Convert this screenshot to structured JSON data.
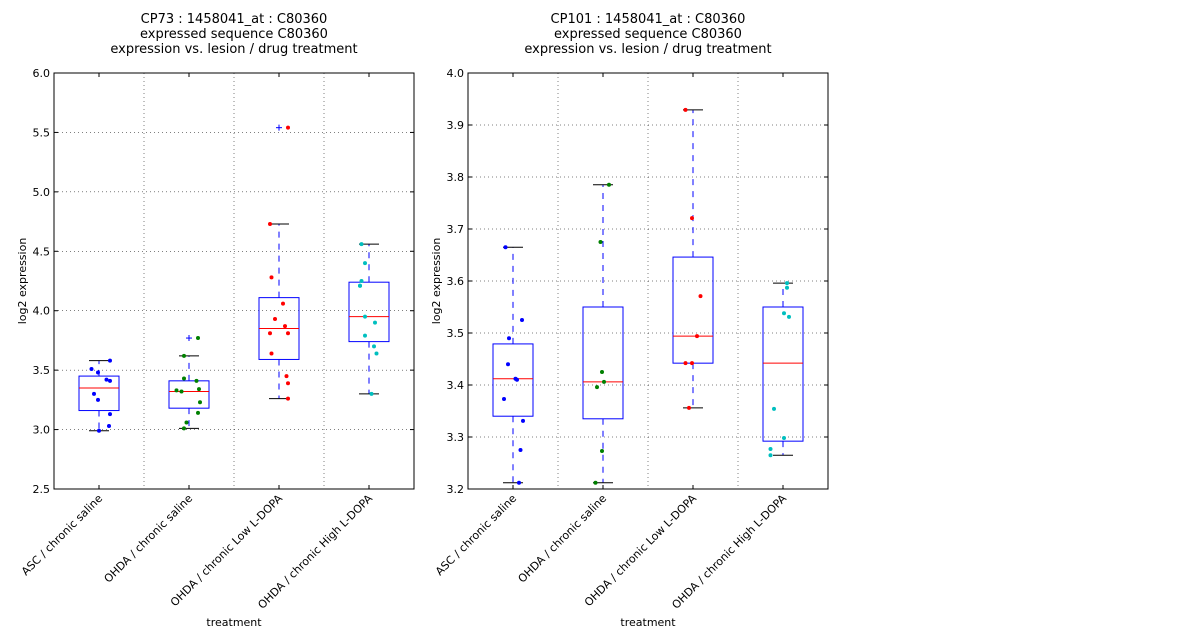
{
  "chart_data": [
    {
      "type": "box",
      "title": [
        "CP73 : 1458041_at : C80360",
        "expressed sequence C80360",
        "expression vs. lesion / drug treatment"
      ],
      "xlabel": "treatment",
      "ylabel": "log2 expression",
      "ylim": [
        2.5,
        6.0
      ],
      "yticks": [
        "2.5",
        "3.0",
        "3.5",
        "4.0",
        "4.5",
        "5.0",
        "5.5",
        "6.0"
      ],
      "grid": true,
      "categories": [
        "ASC / chronic saline",
        "OHDA / chronic saline",
        "OHDA / chronic Low L-DOPA",
        "OHDA / chronic High L-DOPA"
      ],
      "point_colors": [
        "#0000ff",
        "#008000",
        "#ff0000",
        "#00bfbf"
      ],
      "boxes": [
        {
          "whisker_low": 2.99,
          "q1": 3.16,
          "median": 3.35,
          "q3": 3.45,
          "whisker_high": 3.58,
          "fliers": []
        },
        {
          "whisker_low": 3.01,
          "q1": 3.18,
          "median": 3.32,
          "q3": 3.41,
          "whisker_high": 3.62,
          "fliers": [
            3.77
          ]
        },
        {
          "whisker_low": 3.26,
          "q1": 3.59,
          "median": 3.85,
          "q3": 4.11,
          "whisker_high": 4.73,
          "fliers": [
            5.54
          ]
        },
        {
          "whisker_low": 3.3,
          "q1": 3.74,
          "median": 3.95,
          "q3": 4.24,
          "whisker_high": 4.56,
          "fliers": []
        }
      ],
      "points": [
        [
          3.58,
          3.51,
          3.48,
          3.42,
          3.41,
          3.3,
          3.25,
          3.13,
          3.03,
          2.99
        ],
        [
          3.77,
          3.62,
          3.43,
          3.41,
          3.33,
          3.32,
          3.34,
          3.23,
          3.14,
          3.06,
          3.01
        ],
        [
          5.54,
          4.73,
          4.28,
          4.06,
          3.93,
          3.87,
          3.81,
          3.81,
          3.64,
          3.45,
          3.39,
          3.26
        ],
        [
          4.56,
          4.4,
          4.25,
          4.21,
          4.21,
          3.95,
          3.9,
          3.79,
          3.7,
          3.64,
          3.3
        ]
      ],
      "jitter": [
        [
          0.22,
          -0.15,
          -0.02,
          0.15,
          0.22,
          -0.1,
          -0.02,
          0.22,
          0.2,
          0.0
        ],
        [
          0.18,
          -0.1,
          -0.1,
          0.15,
          -0.25,
          -0.15,
          0.2,
          0.22,
          0.18,
          -0.05,
          -0.1
        ],
        [
          0.18,
          -0.18,
          -0.15,
          0.08,
          -0.08,
          0.12,
          -0.18,
          0.18,
          -0.15,
          0.15,
          0.18,
          0.18
        ],
        [
          -0.15,
          -0.08,
          -0.15,
          -0.18,
          -0.18,
          -0.08,
          0.12,
          -0.08,
          0.1,
          0.15,
          0.05
        ]
      ]
    },
    {
      "type": "box",
      "title": [
        "CP101 : 1458041_at : C80360",
        "expressed sequence C80360",
        "expression vs. lesion / drug treatment"
      ],
      "xlabel": "treatment",
      "ylabel": "log2 expression",
      "ylim": [
        3.2,
        4.0
      ],
      "yticks": [
        "3.2",
        "3.3",
        "3.4",
        "3.5",
        "3.6",
        "3.7",
        "3.8",
        "3.9",
        "4.0"
      ],
      "grid": true,
      "categories": [
        "ASC / chronic saline",
        "OHDA / chronic saline",
        "OHDA / chronic Low L-DOPA",
        "OHDA / chronic High L-DOPA"
      ],
      "point_colors": [
        "#0000ff",
        "#008000",
        "#ff0000",
        "#00bfbf"
      ],
      "boxes": [
        {
          "whisker_low": 3.212,
          "q1": 3.34,
          "median": 3.412,
          "q3": 3.479,
          "whisker_high": 3.665,
          "fliers": []
        },
        {
          "whisker_low": 3.212,
          "q1": 3.335,
          "median": 3.406,
          "q3": 3.55,
          "whisker_high": 3.785,
          "fliers": []
        },
        {
          "whisker_low": 3.356,
          "q1": 3.442,
          "median": 3.494,
          "q3": 3.646,
          "whisker_high": 3.929,
          "fliers": []
        },
        {
          "whisker_low": 3.265,
          "q1": 3.292,
          "median": 3.442,
          "q3": 3.55,
          "whisker_high": 3.596,
          "fliers": []
        }
      ],
      "points": [
        [
          3.665,
          3.525,
          3.49,
          3.44,
          3.412,
          3.41,
          3.373,
          3.331,
          3.275,
          3.212
        ],
        [
          3.785,
          3.675,
          3.425,
          3.406,
          3.396,
          3.273,
          3.212
        ],
        [
          3.929,
          3.721,
          3.571,
          3.494,
          3.442,
          3.442,
          3.356
        ],
        [
          3.596,
          3.587,
          3.538,
          3.531,
          3.354,
          3.298,
          3.277,
          3.265
        ]
      ],
      "jitter": [
        [
          -0.15,
          0.18,
          -0.08,
          -0.1,
          0.05,
          0.08,
          -0.18,
          0.2,
          0.15,
          0.12
        ],
        [
          0.12,
          -0.05,
          -0.02,
          0.02,
          -0.12,
          -0.02,
          -0.15
        ],
        [
          -0.15,
          -0.02,
          0.15,
          0.08,
          -0.15,
          -0.02,
          -0.08
        ],
        [
          0.08,
          0.08,
          0.02,
          0.12,
          -0.18,
          0.02,
          -0.25,
          -0.25
        ]
      ]
    }
  ]
}
